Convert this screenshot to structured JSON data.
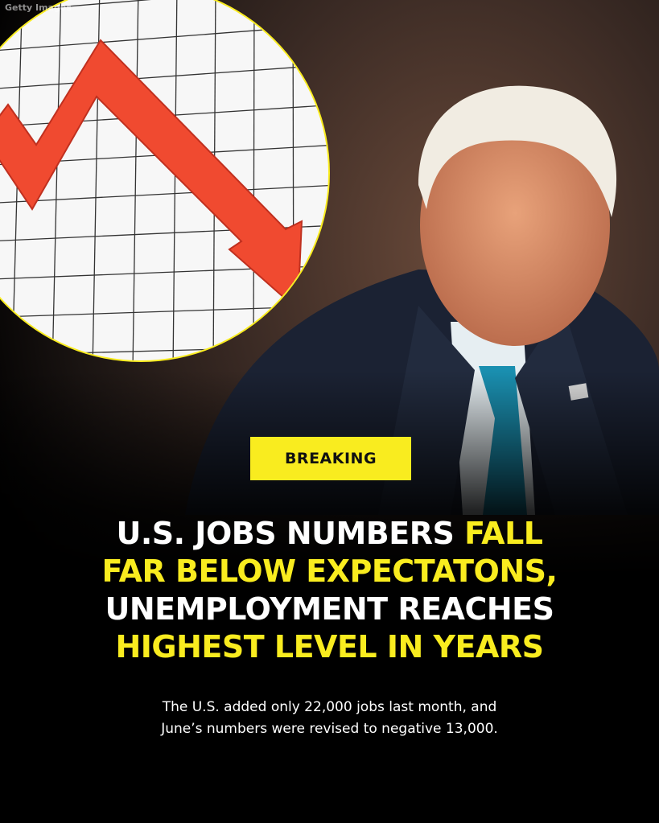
{
  "credit": "Getty Images",
  "badge": "BREAKING",
  "headline": {
    "line1_white": "U.S. JOBS NUMBERS ",
    "line1_yellow": "FALL",
    "line2_yellow": "FAR BELOW EXPECTATONS,",
    "line3_white": "UNEMPLOYMENT REACHES",
    "line4_yellow": "HIGHEST LEVEL IN YEARS"
  },
  "subtext": {
    "line1": "The U.S. added only 22,000 jobs last month, and",
    "line2": "June’s numbers were revised to negative 13,000."
  },
  "colors": {
    "accent": "#f9ec1f",
    "arrow": "#f04a30",
    "background": "#000000"
  },
  "icons": [
    "falling-arrow-chart-icon"
  ]
}
